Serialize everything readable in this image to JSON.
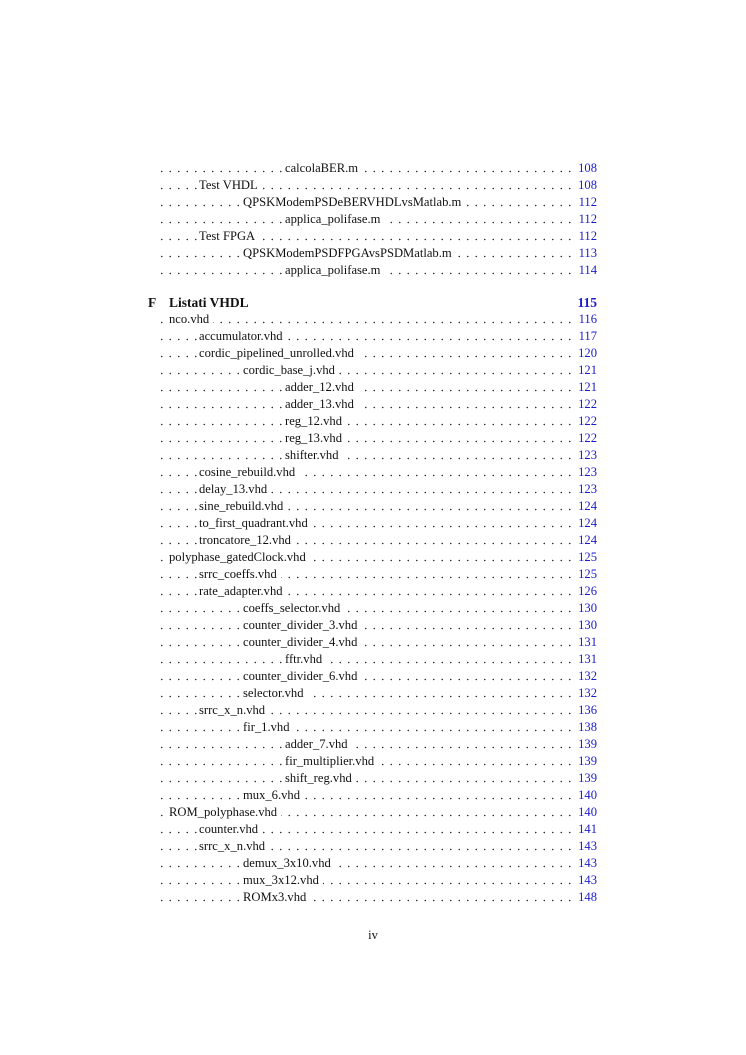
{
  "before": [
    {
      "title": "calcolaBER.m",
      "page": "108",
      "level": 3
    },
    {
      "title": "Test VHDL",
      "page": "108",
      "level": 1
    },
    {
      "title": "QPSKModemPSDeBERVHDLvsMatlab.m",
      "page": "112",
      "level": 2
    },
    {
      "title": "applica_polifase.m",
      "page": "112",
      "level": 3
    },
    {
      "title": "Test FPGA",
      "page": "112",
      "level": 1
    },
    {
      "title": "QPSKModemPSDFPGAvsPSDMatlab.m",
      "page": "113",
      "level": 2
    },
    {
      "title": "applica_polifase.m",
      "page": "114",
      "level": 3
    }
  ],
  "chapter": {
    "letter": "F",
    "title": "Listati VHDL",
    "page": "115"
  },
  "entries": [
    {
      "title": "nco.vhd",
      "page": "116",
      "level": 0
    },
    {
      "title": "accumulator.vhd",
      "page": "117",
      "level": 1
    },
    {
      "title": "cordic_pipelined_unrolled.vhd",
      "page": "120",
      "level": 1
    },
    {
      "title": "cordic_base_j.vhd",
      "page": "121",
      "level": 2
    },
    {
      "title": "adder_12.vhd",
      "page": "121",
      "level": 3
    },
    {
      "title": "adder_13.vhd",
      "page": "122",
      "level": 3
    },
    {
      "title": "reg_12.vhd",
      "page": "122",
      "level": 3
    },
    {
      "title": "reg_13.vhd",
      "page": "122",
      "level": 3
    },
    {
      "title": "shifter.vhd",
      "page": "123",
      "level": 3
    },
    {
      "title": "cosine_rebuild.vhd",
      "page": "123",
      "level": 1
    },
    {
      "title": "delay_13.vhd",
      "page": "123",
      "level": 1
    },
    {
      "title": "sine_rebuild.vhd",
      "page": "124",
      "level": 1
    },
    {
      "title": "to_first_quadrant.vhd",
      "page": "124",
      "level": 1
    },
    {
      "title": "troncatore_12.vhd",
      "page": "124",
      "level": 1
    },
    {
      "title": "polyphase_gatedClock.vhd",
      "page": "125",
      "level": 0
    },
    {
      "title": "srrc_coeffs.vhd",
      "page": "125",
      "level": 1
    },
    {
      "title": "rate_adapter.vhd",
      "page": "126",
      "level": 1
    },
    {
      "title": "coeffs_selector.vhd",
      "page": "130",
      "level": 2
    },
    {
      "title": "counter_divider_3.vhd",
      "page": "130",
      "level": 2
    },
    {
      "title": "counter_divider_4.vhd",
      "page": "131",
      "level": 2
    },
    {
      "title": "fftr.vhd",
      "page": "131",
      "level": 3
    },
    {
      "title": "counter_divider_6.vhd",
      "page": "132",
      "level": 2
    },
    {
      "title": "selector.vhd",
      "page": "132",
      "level": 2
    },
    {
      "title": "srrc_x_n.vhd",
      "page": "136",
      "level": 1
    },
    {
      "title": "fir_1.vhd",
      "page": "138",
      "level": 2
    },
    {
      "title": "adder_7.vhd",
      "page": "139",
      "level": 3
    },
    {
      "title": "fir_multiplier.vhd",
      "page": "139",
      "level": 3
    },
    {
      "title": "shift_reg.vhd",
      "page": "139",
      "level": 3
    },
    {
      "title": "mux_6.vhd",
      "page": "140",
      "level": 2
    },
    {
      "title": "ROM_polyphase.vhd",
      "page": "140",
      "level": 0
    },
    {
      "title": "counter.vhd",
      "page": "141",
      "level": 1
    },
    {
      "title": "srrc_x_n.vhd",
      "page": "143",
      "level": 1
    },
    {
      "title": "demux_3x10.vhd",
      "page": "143",
      "level": 2
    },
    {
      "title": "mux_3x12.vhd",
      "page": "143",
      "level": 2
    },
    {
      "title": "ROMx3.vhd",
      "page": "148",
      "level": 2
    }
  ],
  "page_number": "iv",
  "colors": {
    "link": "#1c1ccc",
    "text": "#111111"
  }
}
